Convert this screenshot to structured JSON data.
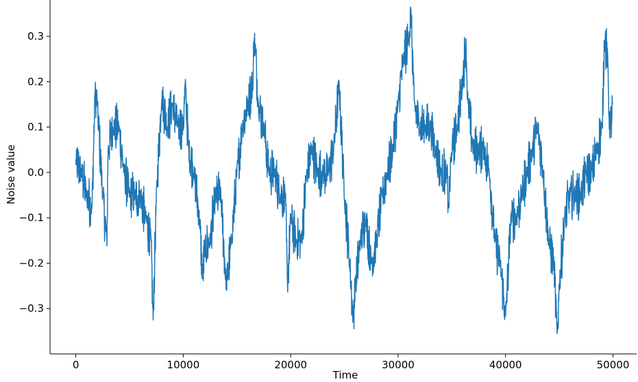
{
  "chart_data": {
    "type": "line",
    "title": "",
    "xlabel": "Time",
    "ylabel": "Noise value",
    "xlim": [
      -2400,
      52200
    ],
    "ylim": [
      -0.4,
      0.38
    ],
    "xticks": [
      0,
      10000,
      20000,
      30000,
      40000,
      50000
    ],
    "xtick_labels": [
      "0",
      "10000",
      "20000",
      "30000",
      "40000",
      "50000"
    ],
    "yticks": [
      -0.3,
      -0.2,
      -0.1,
      0.0,
      0.1,
      0.2,
      0.3
    ],
    "ytick_labels": [
      "−0.3",
      "−0.2",
      "−0.1",
      "0.0",
      "0.1",
      "0.2",
      "0.3"
    ],
    "grid": false,
    "legend": "none",
    "spines": "left-bottom",
    "series": [
      {
        "color": "#1f77b4",
        "x": [
          0,
          500,
          1000,
          1500,
          2000,
          2500,
          3000,
          3500,
          4000,
          4500,
          5000,
          5500,
          6000,
          6500,
          7000,
          7500,
          8000,
          8500,
          9000,
          9500,
          10000,
          10500,
          11000,
          11500,
          12000,
          12500,
          13000,
          13500,
          14000,
          14500,
          15000,
          15500,
          16000,
          16500,
          17000,
          17500,
          18000,
          18500,
          19000,
          19500,
          20000,
          20500,
          21000,
          21500,
          22000,
          22500,
          23000,
          23500,
          24000,
          24500,
          25000,
          25500,
          26000,
          26500,
          27000,
          27500,
          28000,
          28500,
          29000,
          29500,
          30000,
          30500,
          31000,
          31500,
          32000,
          32500,
          33000,
          33500,
          34000,
          34500,
          35000,
          35500,
          36000,
          36500,
          37000,
          37500,
          38000,
          38500,
          39000,
          39500,
          40000,
          40500,
          41000,
          41500,
          42000,
          42500,
          43000,
          43500,
          44000,
          44500,
          45000,
          45500,
          46000,
          46500,
          47000,
          47500,
          48000,
          48500,
          49000,
          49500,
          50000
        ],
        "y": [
          0.0,
          0.0,
          -0.05,
          -0.08,
          0.15,
          -0.05,
          0.05,
          0.1,
          0.1,
          0.0,
          -0.05,
          -0.05,
          -0.05,
          -0.1,
          -0.15,
          -0.05,
          0.15,
          0.1,
          0.15,
          0.1,
          0.1,
          0.05,
          0.0,
          -0.1,
          -0.17,
          -0.15,
          -0.05,
          -0.05,
          -0.1,
          -0.15,
          0.0,
          0.1,
          0.15,
          0.2,
          0.15,
          0.1,
          0.0,
          0.0,
          -0.05,
          -0.05,
          -0.1,
          -0.15,
          -0.15,
          0.0,
          0.05,
          0.0,
          0.0,
          0.0,
          0.05,
          0.1,
          -0.05,
          -0.2,
          -0.25,
          -0.15,
          -0.1,
          -0.2,
          -0.15,
          -0.05,
          0.0,
          0.05,
          0.15,
          0.25,
          0.3,
          0.15,
          0.1,
          0.1,
          0.1,
          0.05,
          0.0,
          0.0,
          0.05,
          0.1,
          0.2,
          0.15,
          0.05,
          0.05,
          0.05,
          0.0,
          -0.15,
          -0.2,
          -0.25,
          -0.1,
          -0.1,
          -0.05,
          0.0,
          0.05,
          0.1,
          0.0,
          -0.15,
          -0.2,
          -0.25,
          -0.1,
          -0.05,
          -0.05,
          -0.05,
          0.0,
          0.0,
          0.05,
          0.1,
          0.25,
          0.15
        ],
        "annotated_extremes": [
          {
            "x": 0,
            "y": 0.025
          },
          {
            "x": 1800,
            "y": 0.18
          },
          {
            "x": 2900,
            "y": -0.153
          },
          {
            "x": 7200,
            "y": -0.325
          },
          {
            "x": 8000,
            "y": 0.17
          },
          {
            "x": 10200,
            "y": 0.195
          },
          {
            "x": 11800,
            "y": -0.23
          },
          {
            "x": 14000,
            "y": -0.25
          },
          {
            "x": 16600,
            "y": 0.305
          },
          {
            "x": 19700,
            "y": -0.255
          },
          {
            "x": 24500,
            "y": 0.195
          },
          {
            "x": 25800,
            "y": -0.32
          },
          {
            "x": 28000,
            "y": 0.125
          },
          {
            "x": 31200,
            "y": 0.35
          },
          {
            "x": 33000,
            "y": 0.05
          },
          {
            "x": 34700,
            "y": -0.075
          },
          {
            "x": 36300,
            "y": 0.29
          },
          {
            "x": 40000,
            "y": -0.32
          },
          {
            "x": 44800,
            "y": -0.36
          },
          {
            "x": 49200,
            "y": 0.3
          },
          {
            "x": 49700,
            "y": 0.09
          }
        ]
      }
    ]
  }
}
